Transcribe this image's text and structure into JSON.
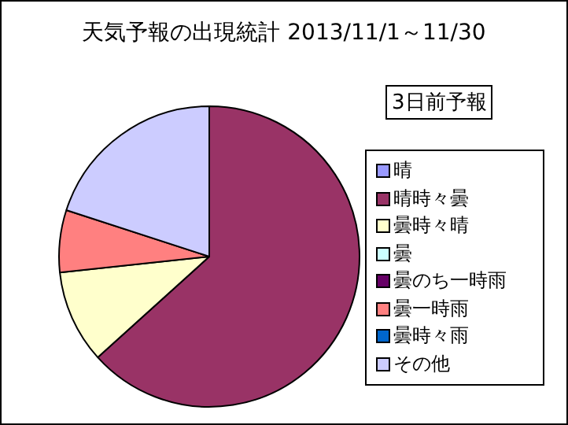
{
  "chart_data": {
    "type": "pie",
    "title": "天気予報の出現統計 2013/11/1～11/30",
    "subtitle": "3日前予報",
    "categories": [
      "晴",
      "晴時々曇",
      "曇時々晴",
      "曇",
      "曇のち一時雨",
      "曇一時雨",
      "曇時々雨",
      "その他"
    ],
    "values": [
      0,
      63.3,
      10,
      0,
      0,
      6.7,
      0,
      20
    ],
    "colors": [
      "#9999ff",
      "#993366",
      "#ffffcc",
      "#ccffff",
      "#660066",
      "#ff8080",
      "#0066cc",
      "#ccccff"
    ],
    "legend": "right"
  }
}
